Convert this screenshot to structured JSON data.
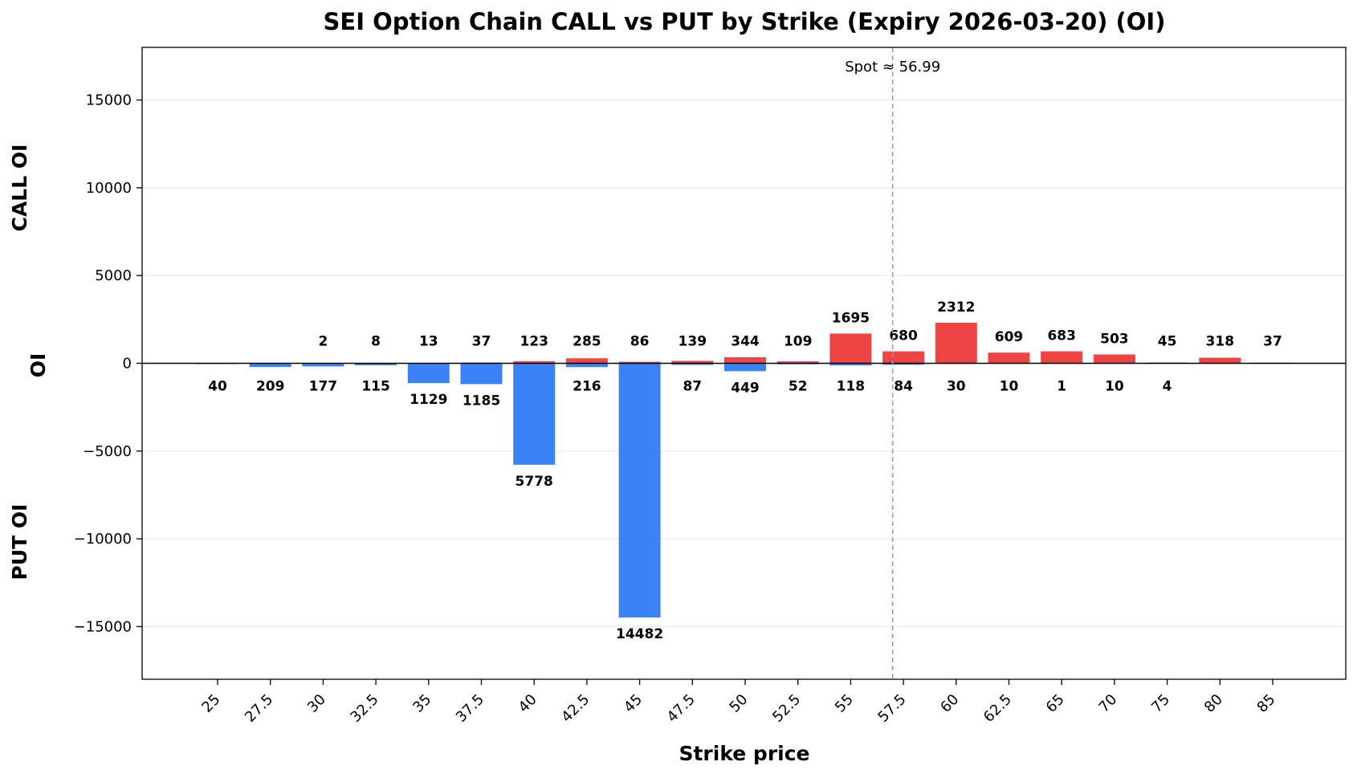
{
  "colors": {
    "call": "#ef4444",
    "put": "#3b82f6",
    "grid": "#ebebeb",
    "spot_line": "#999999",
    "zero_line": "#000000"
  },
  "chart_data": {
    "type": "bar",
    "title": "SEI Option Chain CALL vs PUT by Strike (Expiry 2026-03-20) (OI)",
    "xlabel": "Strike price",
    "ylabel": "OI",
    "ylabel_top": "CALL OI",
    "ylabel_bottom": "PUT OI",
    "ylim": [
      -18000,
      18000
    ],
    "yticks": [
      -15000,
      -10000,
      -5000,
      0,
      5000,
      10000,
      15000
    ],
    "ytick_labels": [
      "−15000",
      "−10000",
      "−5000",
      "0",
      "5000",
      "10000",
      "15000"
    ],
    "grid": true,
    "categories": [
      "25",
      "27.5",
      "30",
      "32.5",
      "35",
      "37.5",
      "40",
      "42.5",
      "45",
      "47.5",
      "50",
      "52.5",
      "55",
      "57.5",
      "60",
      "62.5",
      "65",
      "70",
      "75",
      "80",
      "85"
    ],
    "series": [
      {
        "name": "CALL",
        "values": [
          0,
          0,
          2,
          8,
          13,
          37,
          123,
          285,
          86,
          139,
          344,
          109,
          1695,
          680,
          2312,
          609,
          683,
          503,
          45,
          318,
          37
        ]
      },
      {
        "name": "PUT",
        "values": [
          40,
          209,
          177,
          115,
          1129,
          1185,
          5778,
          216,
          14482,
          87,
          449,
          52,
          118,
          84,
          30,
          10,
          1,
          10,
          4,
          0,
          0
        ]
      }
    ],
    "call_labels": [
      "",
      "",
      "2",
      "8",
      "13",
      "37",
      "123",
      "285",
      "86",
      "139",
      "344",
      "109",
      "1695",
      "680",
      "2312",
      "609",
      "683",
      "503",
      "45",
      "318",
      "37"
    ],
    "put_labels": [
      "40",
      "209",
      "177",
      "115",
      "1129",
      "1185",
      "5778",
      "216",
      "14482",
      "87",
      "449",
      "52",
      "118",
      "84",
      "30",
      "10",
      "1",
      "10",
      "4",
      "",
      ""
    ],
    "spot": {
      "value": 56.99,
      "label": "Spot ≈ 56.99"
    }
  }
}
